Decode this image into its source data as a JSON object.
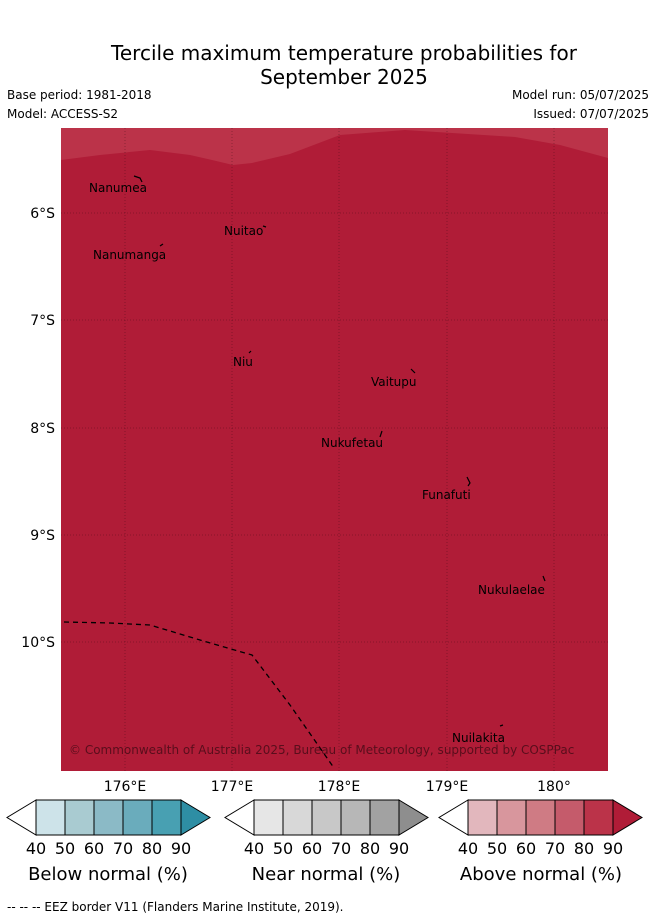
{
  "header": {
    "title_line1": "Tercile maximum temperature probabilities for",
    "title_line2": "September 2025",
    "base_period": "Base period: 1981-2018",
    "model": "Model: ACCESS-S2",
    "model_run": "Model run: 05/07/2025",
    "issued": "Issued: 07/07/2025"
  },
  "map": {
    "latitude_labels": [
      "6°S",
      "7°S",
      "8°S",
      "9°S",
      "10°S"
    ],
    "longitude_labels": [
      "176°E",
      "177°E",
      "178°E",
      "179°E",
      "180°"
    ],
    "fill_color": "#b01c37",
    "upper_band_color": "#bb3349",
    "islands": [
      "Nanumea",
      "Nuitao",
      "Nanumanga",
      "Niu",
      "Vaitupu",
      "Nukufetau",
      "Funafuti",
      "Nukulaelae",
      "Nuilakita"
    ],
    "copyright": "© Commonwealth of Australia 2025, Bureau of Meteorology, supported by COSPPac"
  },
  "legend": {
    "ticks": [
      "40",
      "50",
      "60",
      "70",
      "80",
      "90"
    ],
    "below": {
      "label": "Below normal (%)",
      "colors": [
        "#ffffff",
        "#cde3e9",
        "#a9cbd1",
        "#8bbac6",
        "#6aacbc",
        "#48a0b2",
        "#2e8ea4"
      ]
    },
    "near": {
      "label": "Near normal (%)",
      "colors": [
        "#ffffff",
        "#e6e6e6",
        "#d8d8d8",
        "#c8c8c8",
        "#b7b7b7",
        "#a2a2a2",
        "#8e8e8e"
      ]
    },
    "above": {
      "label": "Above normal (%)",
      "colors": [
        "#ffffff",
        "#e2b7bd",
        "#d8969d",
        "#cf7b84",
        "#c55b6b",
        "#bb3349",
        "#b01c37"
      ]
    }
  },
  "footer": {
    "eez_note": "-- -- -- EEZ border V11 (Flanders Marine Institute, 2019)."
  }
}
